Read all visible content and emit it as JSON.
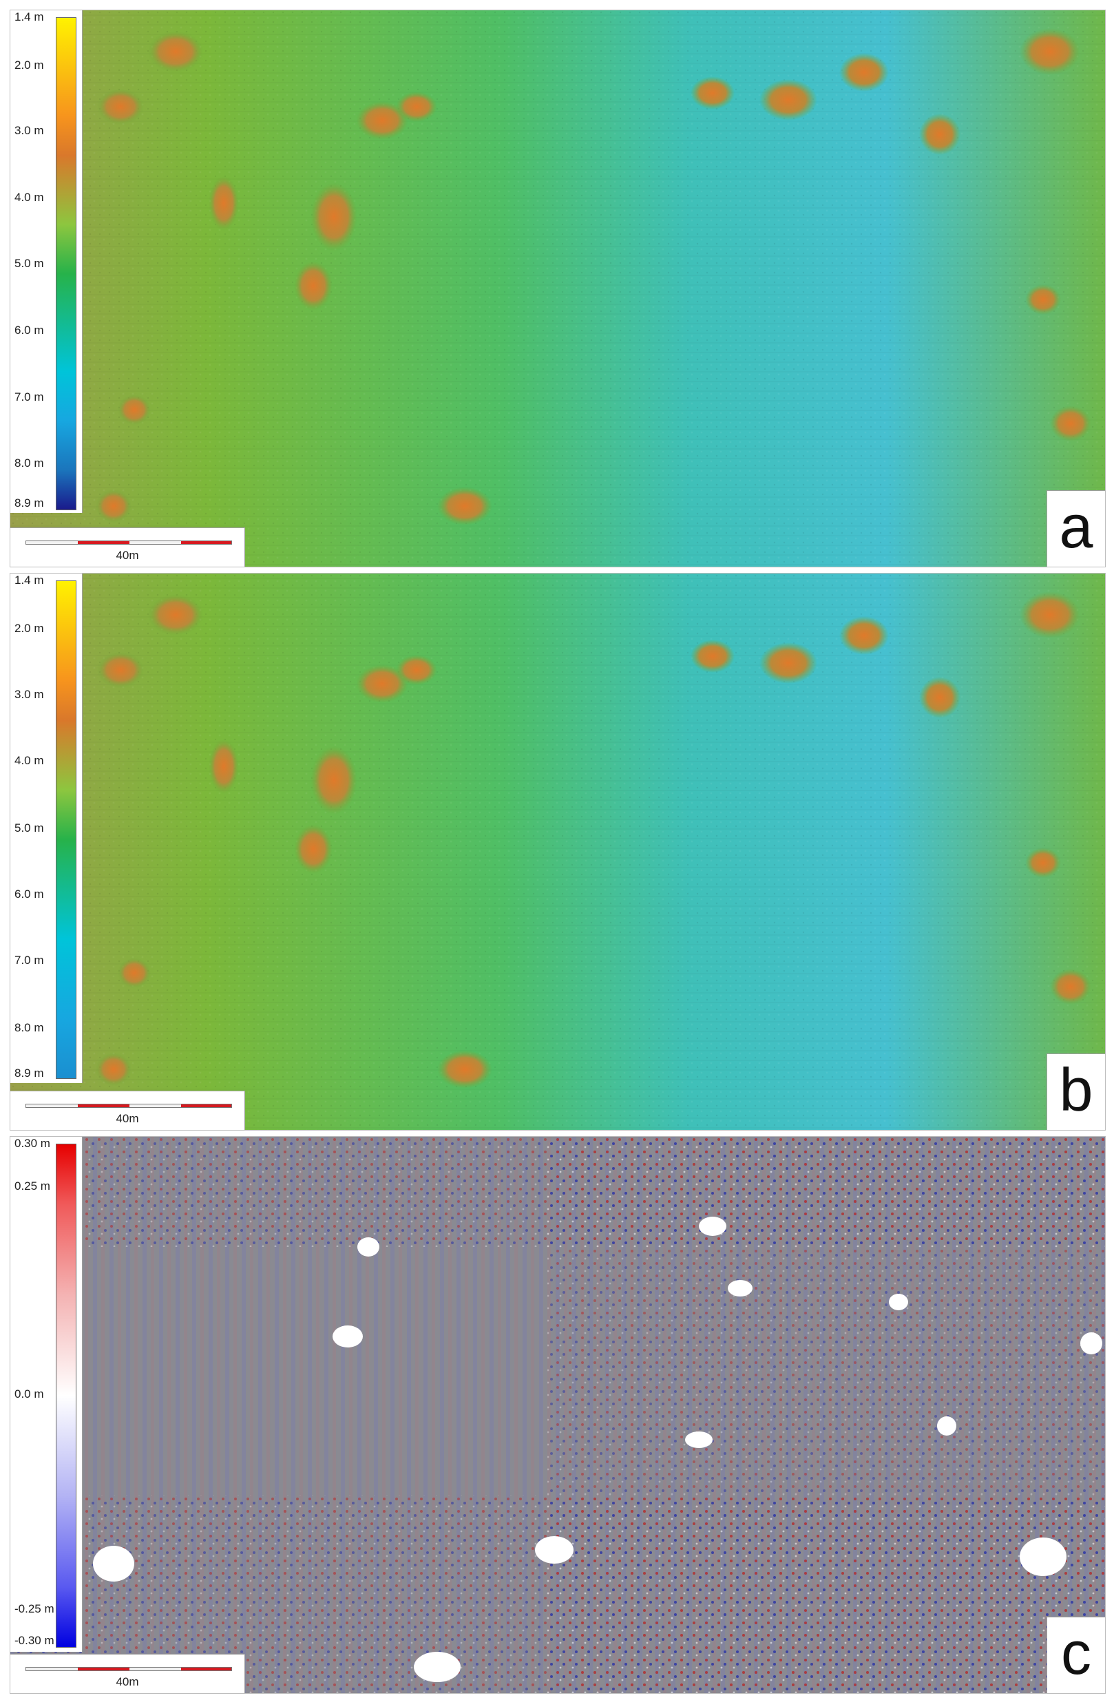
{
  "panels": [
    {
      "id": "a",
      "letter": "a",
      "legend_type": "elevation",
      "ticks": [
        "1.4 m",
        "2.0 m",
        "3.0 m",
        "4.0 m",
        "5.0 m",
        "6.0 m",
        "7.0 m",
        "8.0 m",
        "8.9 m"
      ],
      "tick_values": [
        1.4,
        2.0,
        3.0,
        4.0,
        5.0,
        6.0,
        7.0,
        8.0,
        8.9
      ],
      "value_range": [
        1.4,
        8.9
      ],
      "scale_label": "40m"
    },
    {
      "id": "b",
      "letter": "b",
      "legend_type": "elevation",
      "ticks": [
        "1.4 m",
        "2.0 m",
        "3.0 m",
        "4.0 m",
        "5.0 m",
        "6.0 m",
        "7.0 m",
        "8.0 m",
        "8.9 m"
      ],
      "tick_values": [
        1.4,
        2.0,
        3.0,
        4.0,
        5.0,
        6.0,
        7.0,
        8.0,
        8.9
      ],
      "value_range": [
        1.4,
        8.9
      ],
      "scale_label": "40m"
    },
    {
      "id": "c",
      "letter": "c",
      "legend_type": "difference",
      "ticks": [
        "0.30 m",
        "0.25 m",
        "0.0 m",
        "-0.25 m",
        "-0.30 m"
      ],
      "tick_values": [
        0.3,
        0.25,
        0.0,
        -0.25,
        -0.3
      ],
      "value_range": [
        0.3,
        -0.3
      ],
      "scale_label": "40m"
    }
  ],
  "colors": {
    "elevation_ramp": [
      "#fff200",
      "#f7941d",
      "#d9782b",
      "#8dc63f",
      "#27b24a",
      "#00c4d9",
      "#17a7e0",
      "#1b75bc",
      "#1a1a8c"
    ],
    "difference_ramp": [
      "#e60000",
      "#f4b3b3",
      "#ffffff",
      "#b3b3f4",
      "#0000e0"
    ],
    "scale_segment": "#d71920"
  }
}
